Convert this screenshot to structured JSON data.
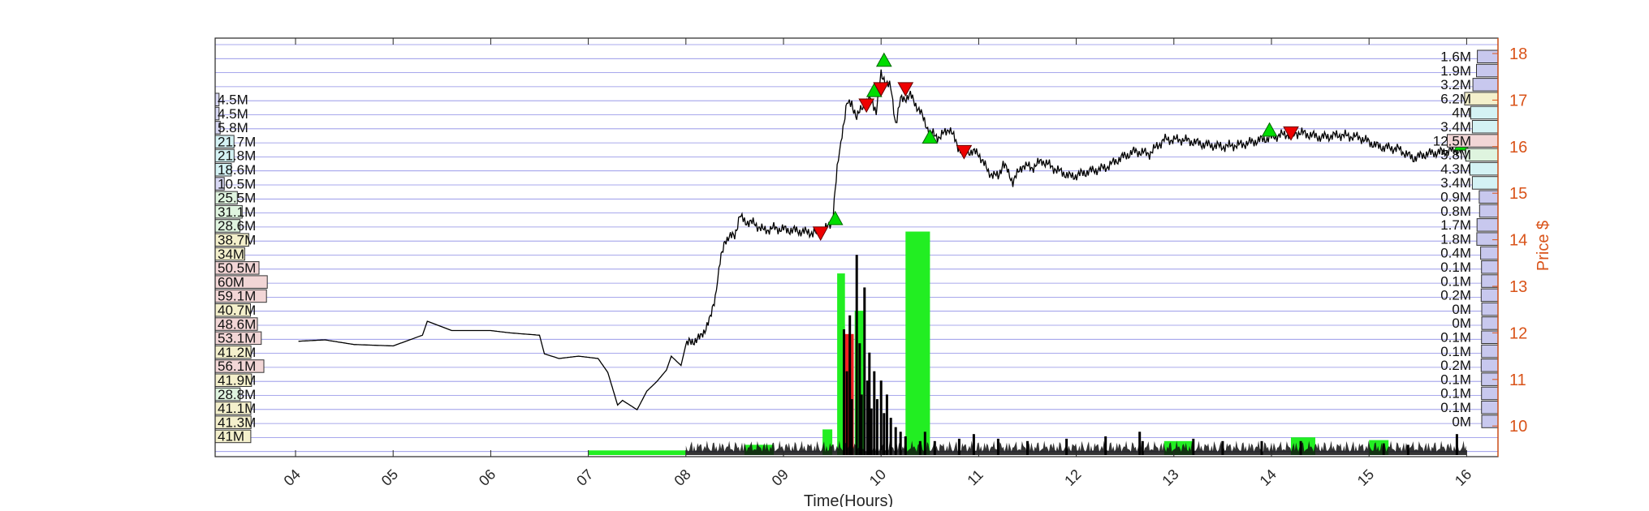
{
  "chart_data": {
    "type": "line",
    "xlabel": "Time(Hours)",
    "ylabel": "Price $",
    "x_ticks": [
      "04",
      "05",
      "06",
      "07",
      "08",
      "09",
      "10",
      "11",
      "12",
      "13",
      "14",
      "15",
      "16"
    ],
    "x_range": [
      3.2,
      16.2
    ],
    "y_ticks": [
      10,
      11,
      12,
      13,
      14,
      15,
      16,
      17,
      18
    ],
    "ylim": [
      9.45,
      18.3
    ],
    "grid": "horizontal",
    "price_series": [
      [
        4.03,
        11.82
      ],
      [
        4.3,
        11.85
      ],
      [
        4.6,
        11.75
      ],
      [
        5.0,
        11.72
      ],
      [
        5.3,
        11.95
      ],
      [
        5.35,
        12.25
      ],
      [
        5.6,
        12.05
      ],
      [
        6.0,
        12.05
      ],
      [
        6.2,
        12.0
      ],
      [
        6.5,
        11.95
      ],
      [
        6.55,
        11.55
      ],
      [
        6.7,
        11.45
      ],
      [
        6.9,
        11.5
      ],
      [
        7.1,
        11.45
      ],
      [
        7.2,
        11.15
      ],
      [
        7.3,
        10.45
      ],
      [
        7.35,
        10.55
      ],
      [
        7.5,
        10.35
      ],
      [
        7.6,
        10.75
      ],
      [
        7.7,
        10.95
      ],
      [
        7.8,
        11.2
      ],
      [
        7.85,
        11.5
      ],
      [
        7.95,
        11.3
      ],
      [
        8.0,
        11.75
      ],
      [
        8.15,
        11.9
      ],
      [
        8.25,
        12.3
      ],
      [
        8.3,
        12.8
      ],
      [
        8.35,
        13.5
      ],
      [
        8.4,
        14.0
      ],
      [
        8.5,
        14.1
      ],
      [
        8.55,
        14.5
      ],
      [
        8.6,
        14.4
      ],
      [
        8.7,
        14.35
      ],
      [
        8.8,
        14.2
      ],
      [
        8.9,
        14.25
      ],
      [
        9.1,
        14.2
      ],
      [
        9.3,
        14.15
      ],
      [
        9.4,
        14.15
      ],
      [
        9.5,
        14.4
      ],
      [
        9.55,
        15.5
      ],
      [
        9.6,
        16.3
      ],
      [
        9.65,
        16.9
      ],
      [
        9.7,
        16.95
      ],
      [
        9.75,
        16.6
      ],
      [
        9.8,
        16.85
      ],
      [
        9.9,
        17.05
      ],
      [
        9.95,
        16.75
      ],
      [
        10.0,
        17.55
      ],
      [
        10.05,
        17.4
      ],
      [
        10.1,
        17.25
      ],
      [
        10.15,
        16.5
      ],
      [
        10.2,
        17.0
      ],
      [
        10.3,
        17.1
      ],
      [
        10.4,
        16.75
      ],
      [
        10.5,
        16.3
      ],
      [
        10.6,
        16.2
      ],
      [
        10.7,
        16.4
      ],
      [
        10.8,
        15.95
      ],
      [
        11.0,
        15.85
      ],
      [
        11.1,
        15.45
      ],
      [
        11.2,
        15.35
      ],
      [
        11.25,
        15.65
      ],
      [
        11.35,
        15.25
      ],
      [
        11.45,
        15.6
      ],
      [
        11.55,
        15.55
      ],
      [
        11.65,
        15.7
      ],
      [
        11.8,
        15.5
      ],
      [
        11.95,
        15.35
      ],
      [
        12.1,
        15.45
      ],
      [
        12.3,
        15.55
      ],
      [
        12.45,
        15.75
      ],
      [
        12.6,
        15.9
      ],
      [
        12.75,
        15.85
      ],
      [
        12.9,
        16.15
      ],
      [
        13.1,
        16.15
      ],
      [
        13.3,
        16.05
      ],
      [
        13.5,
        16.0
      ],
      [
        13.7,
        16.05
      ],
      [
        13.9,
        16.15
      ],
      [
        14.1,
        16.25
      ],
      [
        14.3,
        16.3
      ],
      [
        14.5,
        16.2
      ],
      [
        14.7,
        16.25
      ],
      [
        14.9,
        16.2
      ],
      [
        15.1,
        16.0
      ],
      [
        15.3,
        15.95
      ],
      [
        15.45,
        15.75
      ],
      [
        15.6,
        15.85
      ],
      [
        15.8,
        15.9
      ],
      [
        16.0,
        15.95
      ]
    ],
    "buy_markers": [
      [
        9.53,
        14.45
      ],
      [
        9.93,
        17.2
      ],
      [
        10.03,
        17.85
      ],
      [
        10.5,
        16.2
      ],
      [
        13.98,
        16.35
      ],
      [
        15.95,
        16.05
      ]
    ],
    "sell_markers": [
      [
        9.38,
        14.15
      ],
      [
        9.85,
        16.9
      ],
      [
        10.0,
        17.25
      ],
      [
        10.25,
        17.25
      ],
      [
        10.85,
        15.9
      ],
      [
        14.2,
        16.3
      ]
    ],
    "volume_blocks": [
      {
        "x0": 7.0,
        "x1": 8.0,
        "h": 0.1,
        "color": "#22ee22"
      },
      {
        "x0": 8.6,
        "x1": 8.9,
        "h": 0.22,
        "color": "#22ee22"
      },
      {
        "x0": 9.4,
        "x1": 9.5,
        "h": 0.55,
        "color": "#22ee22"
      },
      {
        "x0": 9.55,
        "x1": 9.63,
        "h": 3.9,
        "color": "#22ee22"
      },
      {
        "x0": 9.62,
        "x1": 9.72,
        "h": 2.6,
        "color": "#ee2222"
      },
      {
        "x0": 9.73,
        "x1": 9.83,
        "h": 3.1,
        "color": "#22ee22"
      },
      {
        "x0": 10.25,
        "x1": 10.5,
        "h": 4.8,
        "color": "#22ee22"
      },
      {
        "x0": 12.9,
        "x1": 13.2,
        "h": 0.3,
        "color": "#22ee22"
      },
      {
        "x0": 14.2,
        "x1": 14.45,
        "h": 0.38,
        "color": "#22ee22"
      },
      {
        "x0": 15.0,
        "x1": 15.2,
        "h": 0.32,
        "color": "#22ee22"
      }
    ],
    "volume_spikes": [
      [
        9.62,
        2.7
      ],
      [
        9.65,
        1.8
      ],
      [
        9.68,
        3.0
      ],
      [
        9.7,
        1.2
      ],
      [
        9.75,
        4.3
      ],
      [
        9.78,
        2.4
      ],
      [
        9.8,
        1.3
      ],
      [
        9.83,
        3.6
      ],
      [
        9.86,
        1.6
      ],
      [
        9.88,
        2.2
      ],
      [
        9.9,
        1.0
      ],
      [
        9.93,
        1.8
      ],
      [
        9.96,
        1.2
      ],
      [
        10.0,
        1.6
      ],
      [
        10.03,
        0.9
      ],
      [
        10.06,
        1.3
      ],
      [
        10.1,
        0.8
      ],
      [
        10.15,
        0.6
      ],
      [
        10.2,
        0.5
      ],
      [
        10.25,
        0.4
      ],
      [
        10.4,
        0.3
      ],
      [
        10.45,
        0.5
      ],
      [
        10.55,
        0.3
      ],
      [
        10.8,
        0.35
      ],
      [
        10.95,
        0.45
      ],
      [
        11.2,
        0.35
      ],
      [
        11.5,
        0.3
      ],
      [
        11.9,
        0.35
      ],
      [
        12.3,
        0.4
      ],
      [
        12.65,
        0.5
      ],
      [
        12.68,
        0.3
      ],
      [
        13.2,
        0.35
      ],
      [
        13.5,
        0.3
      ],
      [
        13.9,
        0.3
      ],
      [
        14.3,
        0.3
      ],
      [
        15.15,
        0.25
      ],
      [
        15.4,
        0.22
      ],
      [
        15.9,
        0.45
      ]
    ],
    "left_profile": {
      "labels": [
        "4.5M",
        "4.5M",
        "5.8M",
        "21.7M",
        "21.8M",
        "18.6M",
        "10.5M",
        "25.5M",
        "31.1M",
        "28.6M",
        "38.7M",
        "34M",
        "50.5M",
        "60M",
        "59.1M",
        "40.7M",
        "48.6M",
        "53.1M",
        "41.2M",
        "56.1M",
        "41.9M",
        "28.8M",
        "41.1M",
        "41.3M",
        "41M"
      ],
      "values": [
        4.5,
        4.5,
        5.8,
        21.7,
        21.8,
        18.6,
        10.5,
        25.5,
        31.1,
        28.6,
        38.7,
        34,
        50.5,
        60,
        59.1,
        40.7,
        48.6,
        53.1,
        41.2,
        56.1,
        41.9,
        28.8,
        41.1,
        41.3,
        41
      ],
      "colors": [
        "#d8d8f4",
        "#d8d8f4",
        "#d8d8f4",
        "#d4f2f4",
        "#d4f2f4",
        "#d4f2f4",
        "#d8d8f4",
        "#dff4df",
        "#dff4df",
        "#dff4df",
        "#f4f0cc",
        "#f4f0cc",
        "#f2d6d6",
        "#f2d6d6",
        "#f2d6d6",
        "#f4f0cc",
        "#f2d6d6",
        "#f2d6d6",
        "#f4f0cc",
        "#f2d6d6",
        "#f4f0cc",
        "#dff4df",
        "#f4f0cc",
        "#f4f0cc",
        "#f4f0cc"
      ]
    },
    "right_profile": {
      "labels": [
        "1.6M",
        "1.9M",
        "3.2M",
        "6.2M",
        "4M",
        "3.4M",
        "12.5M",
        "5.8M",
        "4.3M",
        "3.4M",
        "0.9M",
        "0.8M",
        "1.7M",
        "1.8M",
        "0.4M",
        "0.1M",
        "0.1M",
        "0.2M",
        "0M",
        "0M",
        "0.1M",
        "0.1M",
        "0.2M",
        "0.1M",
        "0.1M",
        "0.1M",
        "0M"
      ],
      "values": [
        1.6,
        1.9,
        3.2,
        6.2,
        4,
        3.4,
        12.5,
        5.8,
        4.3,
        3.4,
        0.9,
        0.8,
        1.7,
        1.8,
        0.4,
        0.1,
        0.1,
        0.2,
        0,
        0,
        0.1,
        0.1,
        0.2,
        0.1,
        0.1,
        0.1,
        0
      ],
      "colors": [
        "#c8c8ee",
        "#c8c8ee",
        "#c8c8ee",
        "#f4f0cc",
        "#d4f2f4",
        "#d4f2f4",
        "#f2d6d6",
        "#dff4df",
        "#d4f2f4",
        "#d4f2f4",
        "#c8c8ee",
        "#c8c8ee",
        "#c8c8ee",
        "#c8c8ee",
        "#c8c8ee",
        "#c8c8ee",
        "#c8c8ee",
        "#c8c8ee",
        "#c8c8ee",
        "#c8c8ee",
        "#c8c8ee",
        "#c8c8ee",
        "#c8c8ee",
        "#c8c8ee",
        "#c8c8ee",
        "#c8c8ee",
        "#c8c8ee"
      ]
    },
    "colors": {
      "price": "#000000",
      "right_axis": "#d95319",
      "buy": "#00dd00",
      "sell": "#ee0000",
      "grid": "#6666dd"
    }
  }
}
